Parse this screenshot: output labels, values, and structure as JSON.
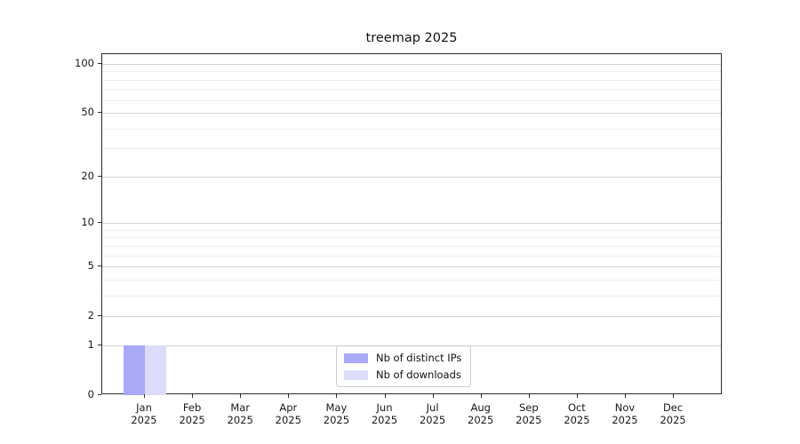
{
  "chart_data": {
    "type": "bar",
    "title": "treemap 2025",
    "categories": [
      "Jan",
      "Feb",
      "Mar",
      "Apr",
      "May",
      "Jun",
      "Jul",
      "Aug",
      "Sep",
      "Oct",
      "Nov",
      "Dec"
    ],
    "category_sublabel": "2025",
    "series": [
      {
        "name": "Nb of distinct IPs",
        "color": "#a9a9f5",
        "values": [
          1,
          0,
          0,
          0,
          0,
          0,
          0,
          0,
          0,
          0,
          0,
          0
        ]
      },
      {
        "name": "Nb of downloads",
        "color": "#dcdcfa",
        "values": [
          1,
          0,
          0,
          0,
          0,
          0,
          0,
          0,
          0,
          0,
          0,
          0
        ]
      }
    ],
    "xlabel": "",
    "ylabel": "",
    "y_scale": "log1p",
    "y_major_ticks": [
      0,
      1,
      2,
      5,
      10,
      20,
      50,
      100
    ],
    "y_minor_ticks": [
      3,
      4,
      6,
      7,
      8,
      9,
      30,
      40,
      60,
      70,
      80,
      90
    ],
    "ylim": [
      0,
      114.6
    ],
    "grid": "horizontal",
    "legend_position": "bottom-center",
    "colors": {
      "grid_major": "#d4d4d4",
      "grid_minor": "#ededed",
      "spine": "#2b2b2b",
      "background": "#ffffff"
    }
  }
}
